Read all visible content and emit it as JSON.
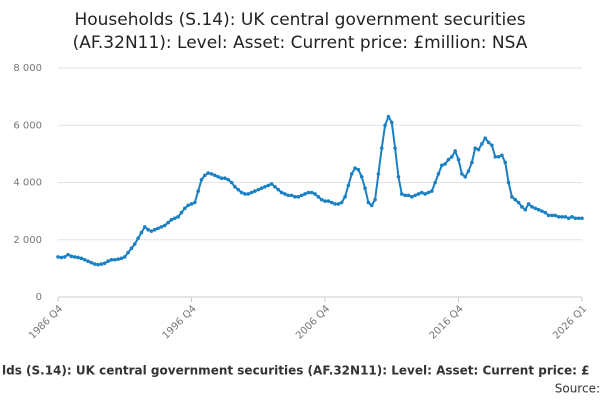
{
  "chart_data": {
    "type": "line",
    "title": [
      "Households (S.14): UK central government securities",
      "(AF.32N11): Level: Asset: Current price: £million: NSA"
    ],
    "footer": "lds (S.14): UK central government securities (AF.32N11): Level: Asset: Current price: £",
    "source": "Source:",
    "categories": [
      "1986 Q4",
      null,
      null,
      null,
      null,
      null,
      null,
      null,
      null,
      null,
      null,
      null,
      null,
      null,
      null,
      null,
      null,
      null,
      null,
      null,
      null,
      null,
      null,
      null,
      null,
      null,
      null,
      null,
      null,
      null,
      null,
      null,
      null,
      null,
      null,
      null,
      null,
      null,
      null,
      null,
      "1996 Q4",
      null,
      null,
      null,
      null,
      null,
      null,
      null,
      null,
      null,
      null,
      null,
      null,
      null,
      null,
      null,
      null,
      null,
      null,
      null,
      null,
      null,
      null,
      null,
      null,
      null,
      null,
      null,
      null,
      null,
      null,
      null,
      null,
      null,
      null,
      null,
      null,
      null,
      null,
      null,
      "2006 Q4",
      null,
      null,
      null,
      null,
      null,
      null,
      null,
      null,
      null,
      null,
      null,
      null,
      null,
      null,
      null,
      null,
      null,
      null,
      null,
      null,
      null,
      null,
      null,
      null,
      null,
      null,
      null,
      null,
      null,
      null,
      null,
      null,
      null,
      null,
      null,
      null,
      null,
      null,
      null,
      "2016 Q4",
      null,
      null,
      null,
      null,
      null,
      null,
      null,
      null,
      null,
      null,
      null,
      null,
      null,
      null,
      null,
      null,
      null,
      null,
      null,
      null,
      null,
      null,
      null,
      null,
      null,
      null,
      null,
      null,
      null,
      null,
      null,
      null,
      null,
      null,
      null,
      null,
      "2026 Q1"
    ],
    "series": [
      {
        "name": "Households",
        "color": "#1a80c2",
        "values": [
          1400,
          1380,
          1400,
          1480,
          1420,
          1400,
          1380,
          1350,
          1300,
          1250,
          1200,
          1150,
          1130,
          1150,
          1180,
          1250,
          1300,
          1300,
          1320,
          1350,
          1400,
          1550,
          1700,
          1850,
          2050,
          2250,
          2450,
          2350,
          2300,
          2350,
          2400,
          2450,
          2500,
          2600,
          2700,
          2750,
          2800,
          2950,
          3100,
          3200,
          3250,
          3300,
          3700,
          4100,
          4250,
          4330,
          4300,
          4250,
          4200,
          4150,
          4150,
          4100,
          4000,
          3850,
          3750,
          3650,
          3600,
          3600,
          3650,
          3700,
          3750,
          3800,
          3850,
          3900,
          3950,
          3850,
          3750,
          3650,
          3600,
          3550,
          3550,
          3500,
          3500,
          3550,
          3600,
          3650,
          3650,
          3600,
          3500,
          3400,
          3350,
          3350,
          3300,
          3250,
          3250,
          3300,
          3500,
          3900,
          4300,
          4500,
          4450,
          4200,
          3800,
          3300,
          3200,
          3400,
          4300,
          5200,
          6000,
          6300,
          6100,
          5200,
          4200,
          3600,
          3550,
          3550,
          3500,
          3550,
          3600,
          3650,
          3600,
          3650,
          3700,
          4000,
          4300,
          4600,
          4650,
          4800,
          4900,
          5100,
          4800,
          4300,
          4200,
          4400,
          4700,
          5200,
          5150,
          5350,
          5550,
          5400,
          5300,
          4900,
          4900,
          4950,
          4700,
          4000,
          3500,
          3400,
          3300,
          3150,
          3050,
          3250,
          3150,
          3100,
          3050,
          3000,
          2950,
          2850,
          2850,
          2850,
          2800,
          2800,
          2800,
          2750,
          2800,
          2750,
          2750,
          2750
        ]
      }
    ],
    "ylim": [
      0,
      8000
    ],
    "yticks": [
      0,
      {
        "value": 2000,
        "label": "2 000"
      },
      {
        "value": 4000,
        "label": "4 000"
      },
      {
        "value": 6000,
        "label": "6 000"
      },
      {
        "value": 8000,
        "label": "8 000"
      }
    ],
    "grid": true
  }
}
